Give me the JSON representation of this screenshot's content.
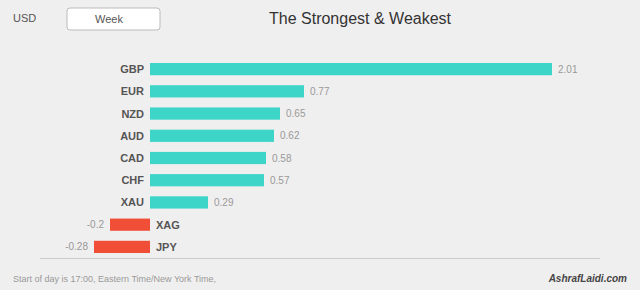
{
  "chart_data": {
    "type": "bar",
    "orientation": "horizontal",
    "title": "The Strongest & Weakest",
    "categories": [
      "GBP",
      "EUR",
      "NZD",
      "AUD",
      "CAD",
      "CHF",
      "XAU",
      "XAG",
      "JPY"
    ],
    "values": [
      2.01,
      0.77,
      0.65,
      0.62,
      0.58,
      0.57,
      0.29,
      -0.2,
      -0.28
    ],
    "colors": [
      "#3dd5c8",
      "#3dd5c8",
      "#3dd5c8",
      "#3dd5c8",
      "#3dd5c8",
      "#3dd5c8",
      "#3dd5c8",
      "#f04e37",
      "#f04e37"
    ],
    "xlim": [
      -0.55,
      2.25
    ],
    "tick_labels": false,
    "grid": false,
    "data_labels": true,
    "annotations": [
      "USD",
      "Week",
      "Start of day is 17:00, Eastern Time/New York Time,",
      "AshrafLaidi.com"
    ]
  }
}
